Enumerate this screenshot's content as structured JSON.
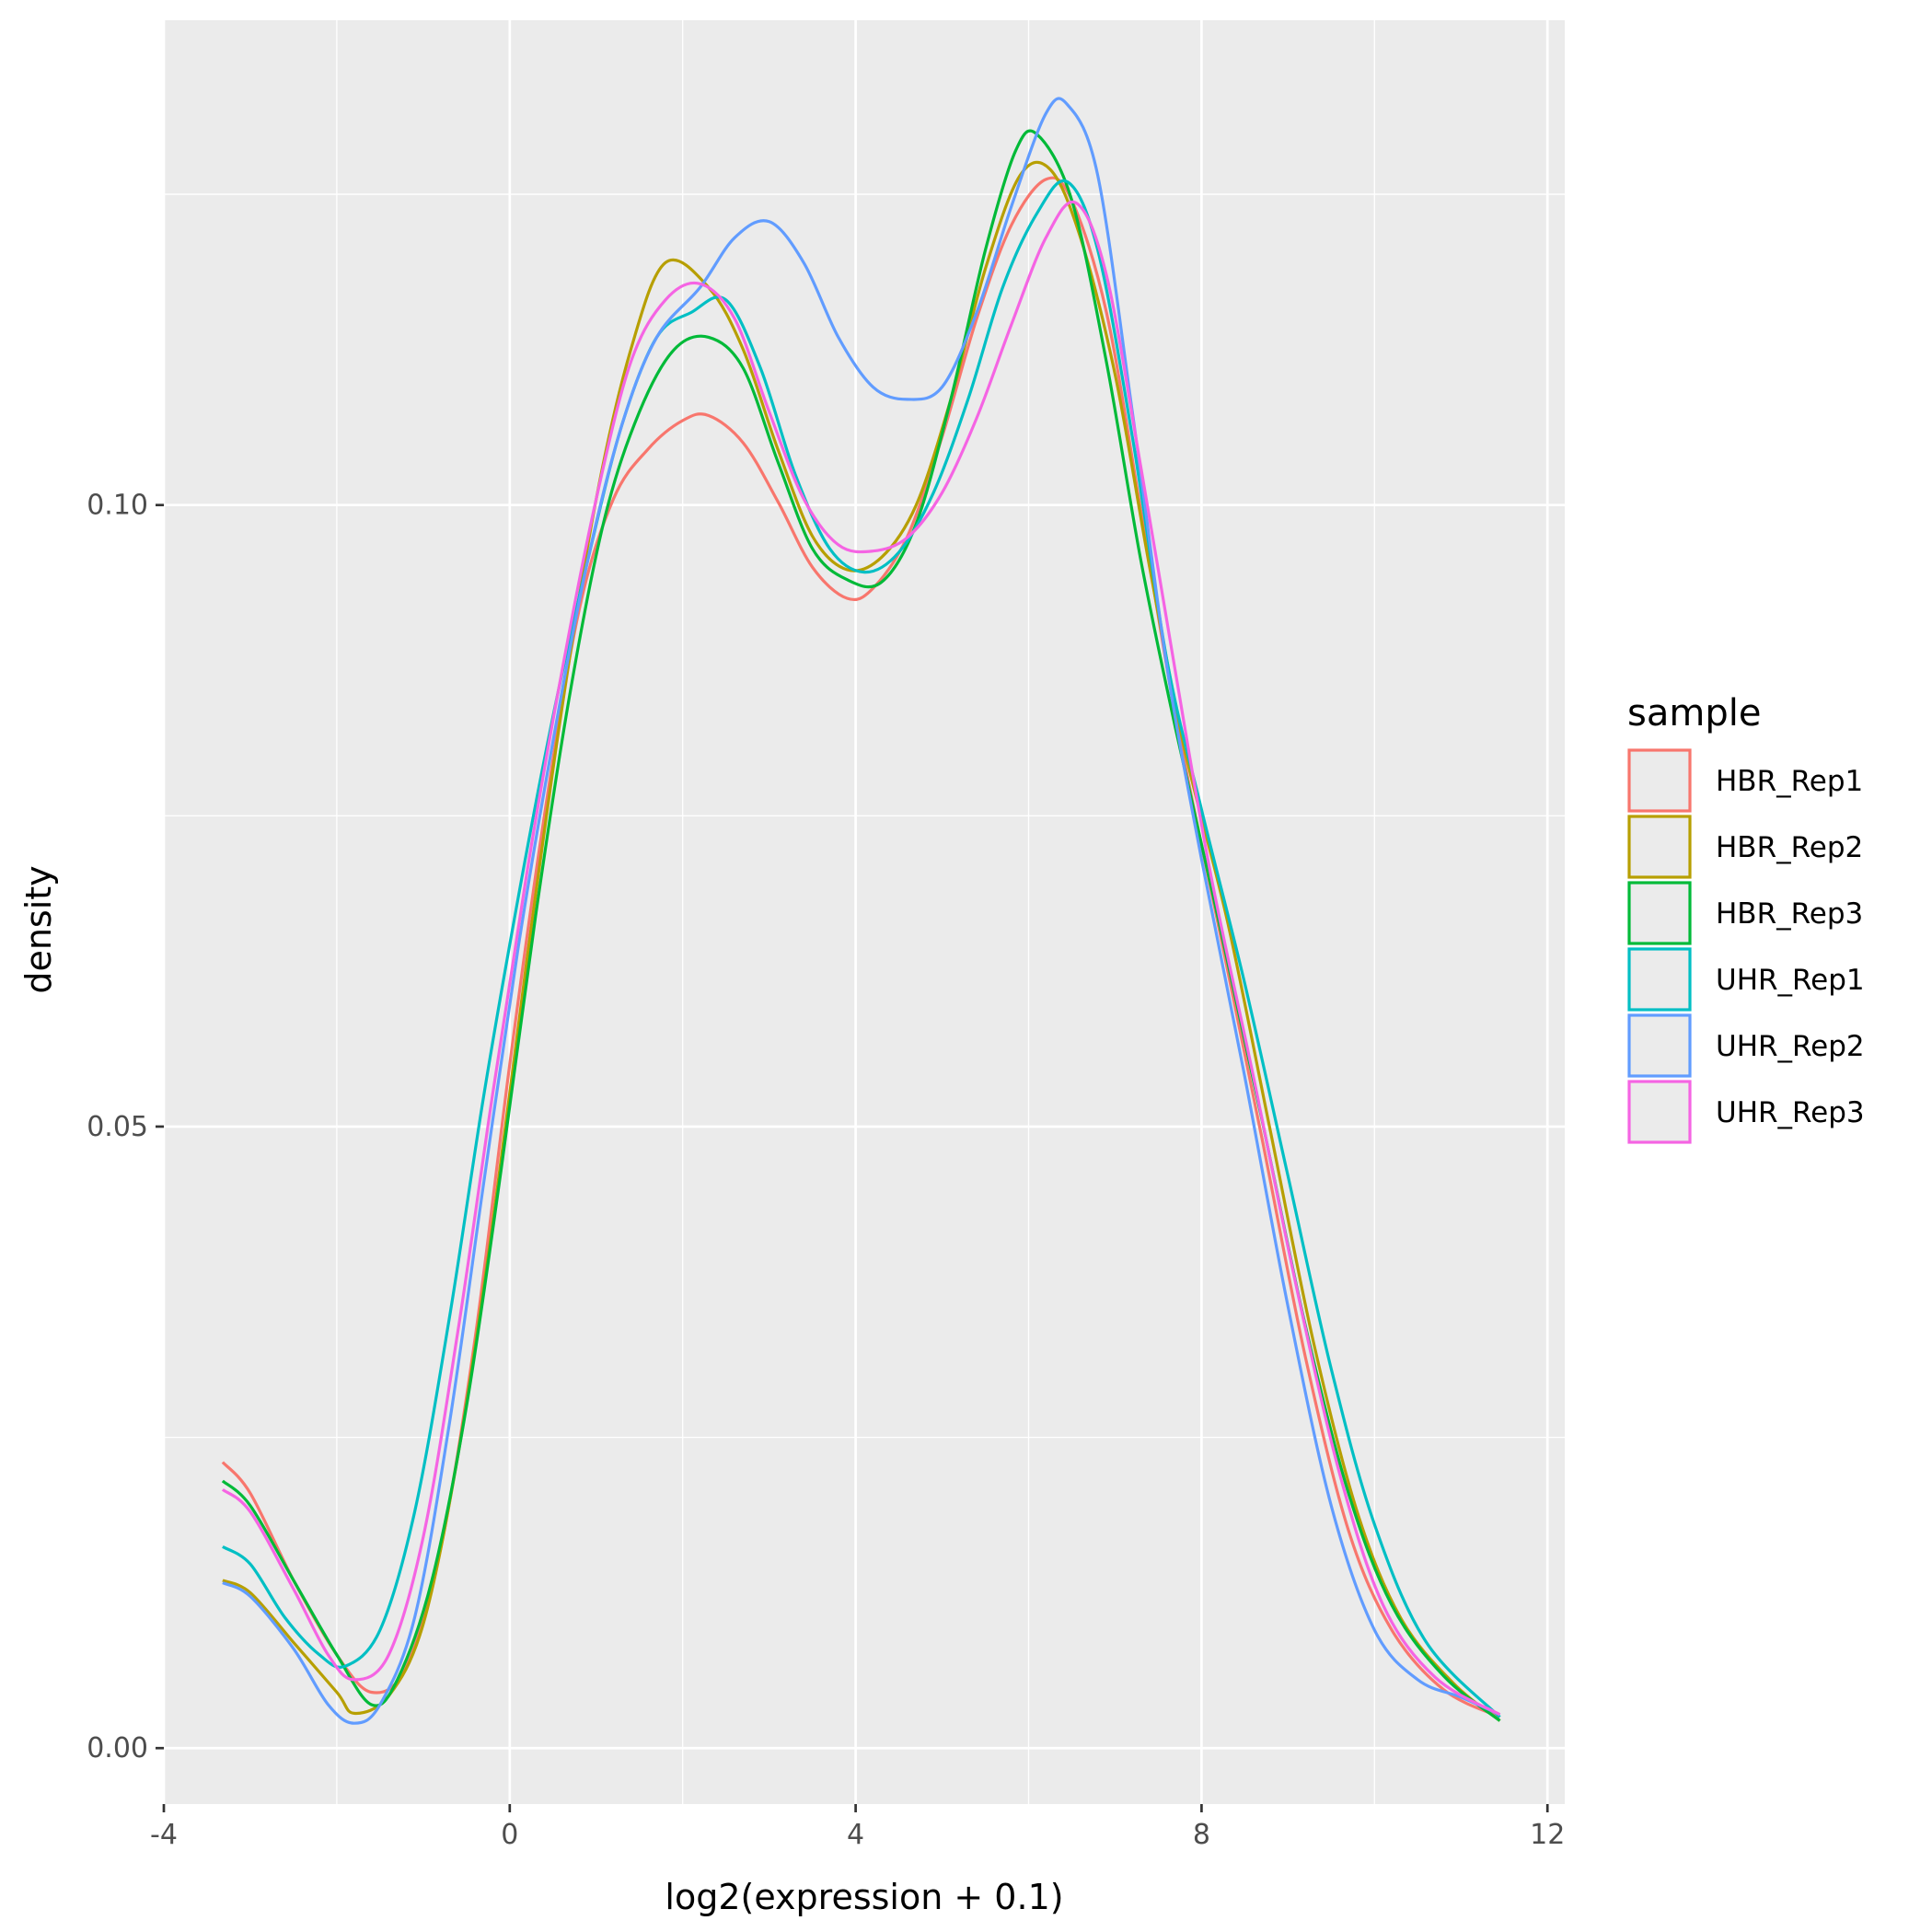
{
  "chart_data": {
    "type": "line",
    "title": "",
    "xlabel": "log2(expression + 0.1)",
    "ylabel": "density",
    "xlim": [
      -4,
      12.2
    ],
    "ylim": [
      -0.0045,
      0.139
    ],
    "x_ticks": [
      -4,
      0,
      4,
      8,
      12
    ],
    "x_tick_labels": [
      "-4",
      "0",
      "4",
      "8",
      "12"
    ],
    "y_ticks": [
      0.0,
      0.05,
      0.1
    ],
    "y_tick_labels": [
      "0.00",
      "0.05",
      "0.10"
    ],
    "grid": true,
    "legend": {
      "title": "sample",
      "placement": "right"
    },
    "series": [
      {
        "name": "HBR_Rep1",
        "color": "#F8766D",
        "points": [
          [
            -3.32,
            0.023
          ],
          [
            -3.0,
            0.0205
          ],
          [
            -2.5,
            0.0135
          ],
          [
            -2.0,
            0.0075
          ],
          [
            -1.6,
            0.0045
          ],
          [
            -1.2,
            0.0065
          ],
          [
            -0.8,
            0.016
          ],
          [
            -0.4,
            0.033
          ],
          [
            0.0,
            0.055
          ],
          [
            0.4,
            0.075
          ],
          [
            0.8,
            0.0915
          ],
          [
            1.2,
            0.1005
          ],
          [
            1.6,
            0.1045
          ],
          [
            2.0,
            0.1068
          ],
          [
            2.3,
            0.1072
          ],
          [
            2.7,
            0.105
          ],
          [
            3.1,
            0.1003
          ],
          [
            3.5,
            0.095
          ],
          [
            3.9,
            0.0925
          ],
          [
            4.2,
            0.0933
          ],
          [
            4.6,
            0.0975
          ],
          [
            5.0,
            0.1055
          ],
          [
            5.4,
            0.115
          ],
          [
            5.8,
            0.1225
          ],
          [
            6.2,
            0.1262
          ],
          [
            6.5,
            0.1245
          ],
          [
            6.9,
            0.1155
          ],
          [
            7.3,
            0.0995
          ],
          [
            7.7,
            0.083
          ],
          [
            8.2,
            0.066
          ],
          [
            8.7,
            0.049
          ],
          [
            9.2,
            0.0315
          ],
          [
            9.7,
            0.0175
          ],
          [
            10.2,
            0.0095
          ],
          [
            10.8,
            0.0047
          ],
          [
            11.45,
            0.0025
          ]
        ]
      },
      {
        "name": "HBR_Rep2",
        "color": "#B79F00",
        "points": [
          [
            -3.32,
            0.0135
          ],
          [
            -3.0,
            0.0125
          ],
          [
            -2.5,
            0.0085
          ],
          [
            -2.0,
            0.0045
          ],
          [
            -1.8,
            0.0028
          ],
          [
            -1.4,
            0.0042
          ],
          [
            -1.0,
            0.01
          ],
          [
            -0.6,
            0.0235
          ],
          [
            -0.2,
            0.042
          ],
          [
            0.2,
            0.0635
          ],
          [
            0.6,
            0.0835
          ],
          [
            1.0,
            0.1005
          ],
          [
            1.4,
            0.1125
          ],
          [
            1.8,
            0.1195
          ],
          [
            2.3,
            0.1175
          ],
          [
            2.7,
            0.1125
          ],
          [
            3.1,
            0.1045
          ],
          [
            3.5,
            0.0975
          ],
          [
            3.9,
            0.0948
          ],
          [
            4.3,
            0.0958
          ],
          [
            4.7,
            0.1
          ],
          [
            5.1,
            0.1085
          ],
          [
            5.5,
            0.119
          ],
          [
            5.9,
            0.1265
          ],
          [
            6.25,
            0.127
          ],
          [
            6.6,
            0.1215
          ],
          [
            7.0,
            0.1105
          ],
          [
            7.4,
            0.095
          ],
          [
            7.8,
            0.0805
          ],
          [
            8.3,
            0.0665
          ],
          [
            8.8,
            0.0495
          ],
          [
            9.3,
            0.0325
          ],
          [
            9.8,
            0.019
          ],
          [
            10.3,
            0.0105
          ],
          [
            10.9,
            0.0053
          ],
          [
            11.45,
            0.0022
          ]
        ]
      },
      {
        "name": "HBR_Rep3",
        "color": "#00BA38",
        "points": [
          [
            -3.32,
            0.0215
          ],
          [
            -3.0,
            0.0195
          ],
          [
            -2.5,
            0.0135
          ],
          [
            -2.0,
            0.0075
          ],
          [
            -1.6,
            0.0035
          ],
          [
            -1.3,
            0.0055
          ],
          [
            -0.9,
            0.0135
          ],
          [
            -0.5,
            0.0275
          ],
          [
            -0.1,
            0.0465
          ],
          [
            0.3,
            0.067
          ],
          [
            0.7,
            0.085
          ],
          [
            1.1,
            0.099
          ],
          [
            1.5,
            0.1075
          ],
          [
            1.9,
            0.1125
          ],
          [
            2.3,
            0.1135
          ],
          [
            2.7,
            0.111
          ],
          [
            3.1,
            0.1035
          ],
          [
            3.5,
            0.0965
          ],
          [
            3.9,
            0.094
          ],
          [
            4.3,
            0.0938
          ],
          [
            4.7,
            0.0985
          ],
          [
            5.1,
            0.1085
          ],
          [
            5.5,
            0.1205
          ],
          [
            5.85,
            0.1285
          ],
          [
            6.1,
            0.1298
          ],
          [
            6.5,
            0.1245
          ],
          [
            6.9,
            0.1115
          ],
          [
            7.3,
            0.0955
          ],
          [
            7.7,
            0.082
          ],
          [
            8.2,
            0.0665
          ],
          [
            8.7,
            0.0505
          ],
          [
            9.2,
            0.034
          ],
          [
            9.7,
            0.0205
          ],
          [
            10.2,
            0.0115
          ],
          [
            10.8,
            0.0058
          ],
          [
            11.45,
            0.0022
          ]
        ]
      },
      {
        "name": "UHR_Rep1",
        "color": "#00BFC4",
        "points": [
          [
            -3.32,
            0.0162
          ],
          [
            -3.0,
            0.0148
          ],
          [
            -2.6,
            0.0105
          ],
          [
            -2.2,
            0.0075
          ],
          [
            -1.9,
            0.0066
          ],
          [
            -1.5,
            0.0095
          ],
          [
            -1.1,
            0.019
          ],
          [
            -0.7,
            0.0345
          ],
          [
            -0.3,
            0.0525
          ],
          [
            0.1,
            0.0685
          ],
          [
            0.5,
            0.083
          ],
          [
            0.9,
            0.0955
          ],
          [
            1.3,
            0.1065
          ],
          [
            1.7,
            0.1135
          ],
          [
            2.1,
            0.1155
          ],
          [
            2.5,
            0.1165
          ],
          [
            2.9,
            0.111
          ],
          [
            3.3,
            0.1025
          ],
          [
            3.7,
            0.0965
          ],
          [
            4.1,
            0.0946
          ],
          [
            4.5,
            0.0962
          ],
          [
            4.9,
            0.101
          ],
          [
            5.3,
            0.1085
          ],
          [
            5.7,
            0.1175
          ],
          [
            6.1,
            0.1235
          ],
          [
            6.45,
            0.126
          ],
          [
            6.8,
            0.1205
          ],
          [
            7.2,
            0.1055
          ],
          [
            7.6,
            0.0875
          ],
          [
            8.0,
            0.0755
          ],
          [
            8.5,
            0.0615
          ],
          [
            9.0,
            0.046
          ],
          [
            9.5,
            0.0305
          ],
          [
            10.0,
            0.018
          ],
          [
            10.6,
            0.0085
          ],
          [
            11.45,
            0.0025
          ]
        ]
      },
      {
        "name": "UHR_Rep2",
        "color": "#619CFF",
        "points": [
          [
            -3.32,
            0.0133
          ],
          [
            -3.0,
            0.0122
          ],
          [
            -2.5,
            0.008
          ],
          [
            -2.1,
            0.0035
          ],
          [
            -1.8,
            0.002
          ],
          [
            -1.5,
            0.0035
          ],
          [
            -1.1,
            0.0105
          ],
          [
            -0.7,
            0.026
          ],
          [
            -0.3,
            0.0455
          ],
          [
            0.1,
            0.0645
          ],
          [
            0.5,
            0.081
          ],
          [
            0.9,
            0.0955
          ],
          [
            1.3,
            0.1065
          ],
          [
            1.7,
            0.1135
          ],
          [
            2.2,
            0.1175
          ],
          [
            2.6,
            0.1215
          ],
          [
            3.0,
            0.1228
          ],
          [
            3.4,
            0.1195
          ],
          [
            3.8,
            0.1135
          ],
          [
            4.2,
            0.1095
          ],
          [
            4.6,
            0.1085
          ],
          [
            5.0,
            0.1095
          ],
          [
            5.4,
            0.1155
          ],
          [
            5.8,
            0.124
          ],
          [
            6.2,
            0.1315
          ],
          [
            6.45,
            0.1322
          ],
          [
            6.8,
            0.1265
          ],
          [
            7.2,
            0.1075
          ],
          [
            7.6,
            0.087
          ],
          [
            8.0,
            0.0715
          ],
          [
            8.5,
            0.054
          ],
          [
            9.0,
            0.0355
          ],
          [
            9.5,
            0.0195
          ],
          [
            10.0,
            0.0095
          ],
          [
            10.5,
            0.0055
          ],
          [
            11.0,
            0.0041
          ],
          [
            11.45,
            0.0027
          ]
        ]
      },
      {
        "name": "UHR_Rep3",
        "color": "#F564E3",
        "points": [
          [
            -3.32,
            0.0208
          ],
          [
            -3.0,
            0.019
          ],
          [
            -2.5,
            0.0128
          ],
          [
            -2.1,
            0.0075
          ],
          [
            -1.8,
            0.0055
          ],
          [
            -1.4,
            0.0075
          ],
          [
            -1.0,
            0.017
          ],
          [
            -0.6,
            0.0335
          ],
          [
            -0.2,
            0.0525
          ],
          [
            0.2,
            0.0705
          ],
          [
            0.6,
            0.0865
          ],
          [
            1.0,
            0.1005
          ],
          [
            1.4,
            0.1115
          ],
          [
            1.8,
            0.1165
          ],
          [
            2.2,
            0.1178
          ],
          [
            2.6,
            0.115
          ],
          [
            3.0,
            0.1075
          ],
          [
            3.4,
            0.1005
          ],
          [
            3.8,
            0.0968
          ],
          [
            4.2,
            0.0963
          ],
          [
            4.6,
            0.0974
          ],
          [
            5.0,
            0.101
          ],
          [
            5.4,
            0.107
          ],
          [
            5.8,
            0.1145
          ],
          [
            6.2,
            0.1215
          ],
          [
            6.55,
            0.1243
          ],
          [
            6.9,
            0.1185
          ],
          [
            7.3,
            0.103
          ],
          [
            7.7,
            0.0865
          ],
          [
            8.1,
            0.0705
          ],
          [
            8.6,
            0.054
          ],
          [
            9.1,
            0.037
          ],
          [
            9.6,
            0.022
          ],
          [
            10.1,
            0.0115
          ],
          [
            10.7,
            0.0057
          ],
          [
            11.45,
            0.0027
          ]
        ]
      }
    ]
  }
}
